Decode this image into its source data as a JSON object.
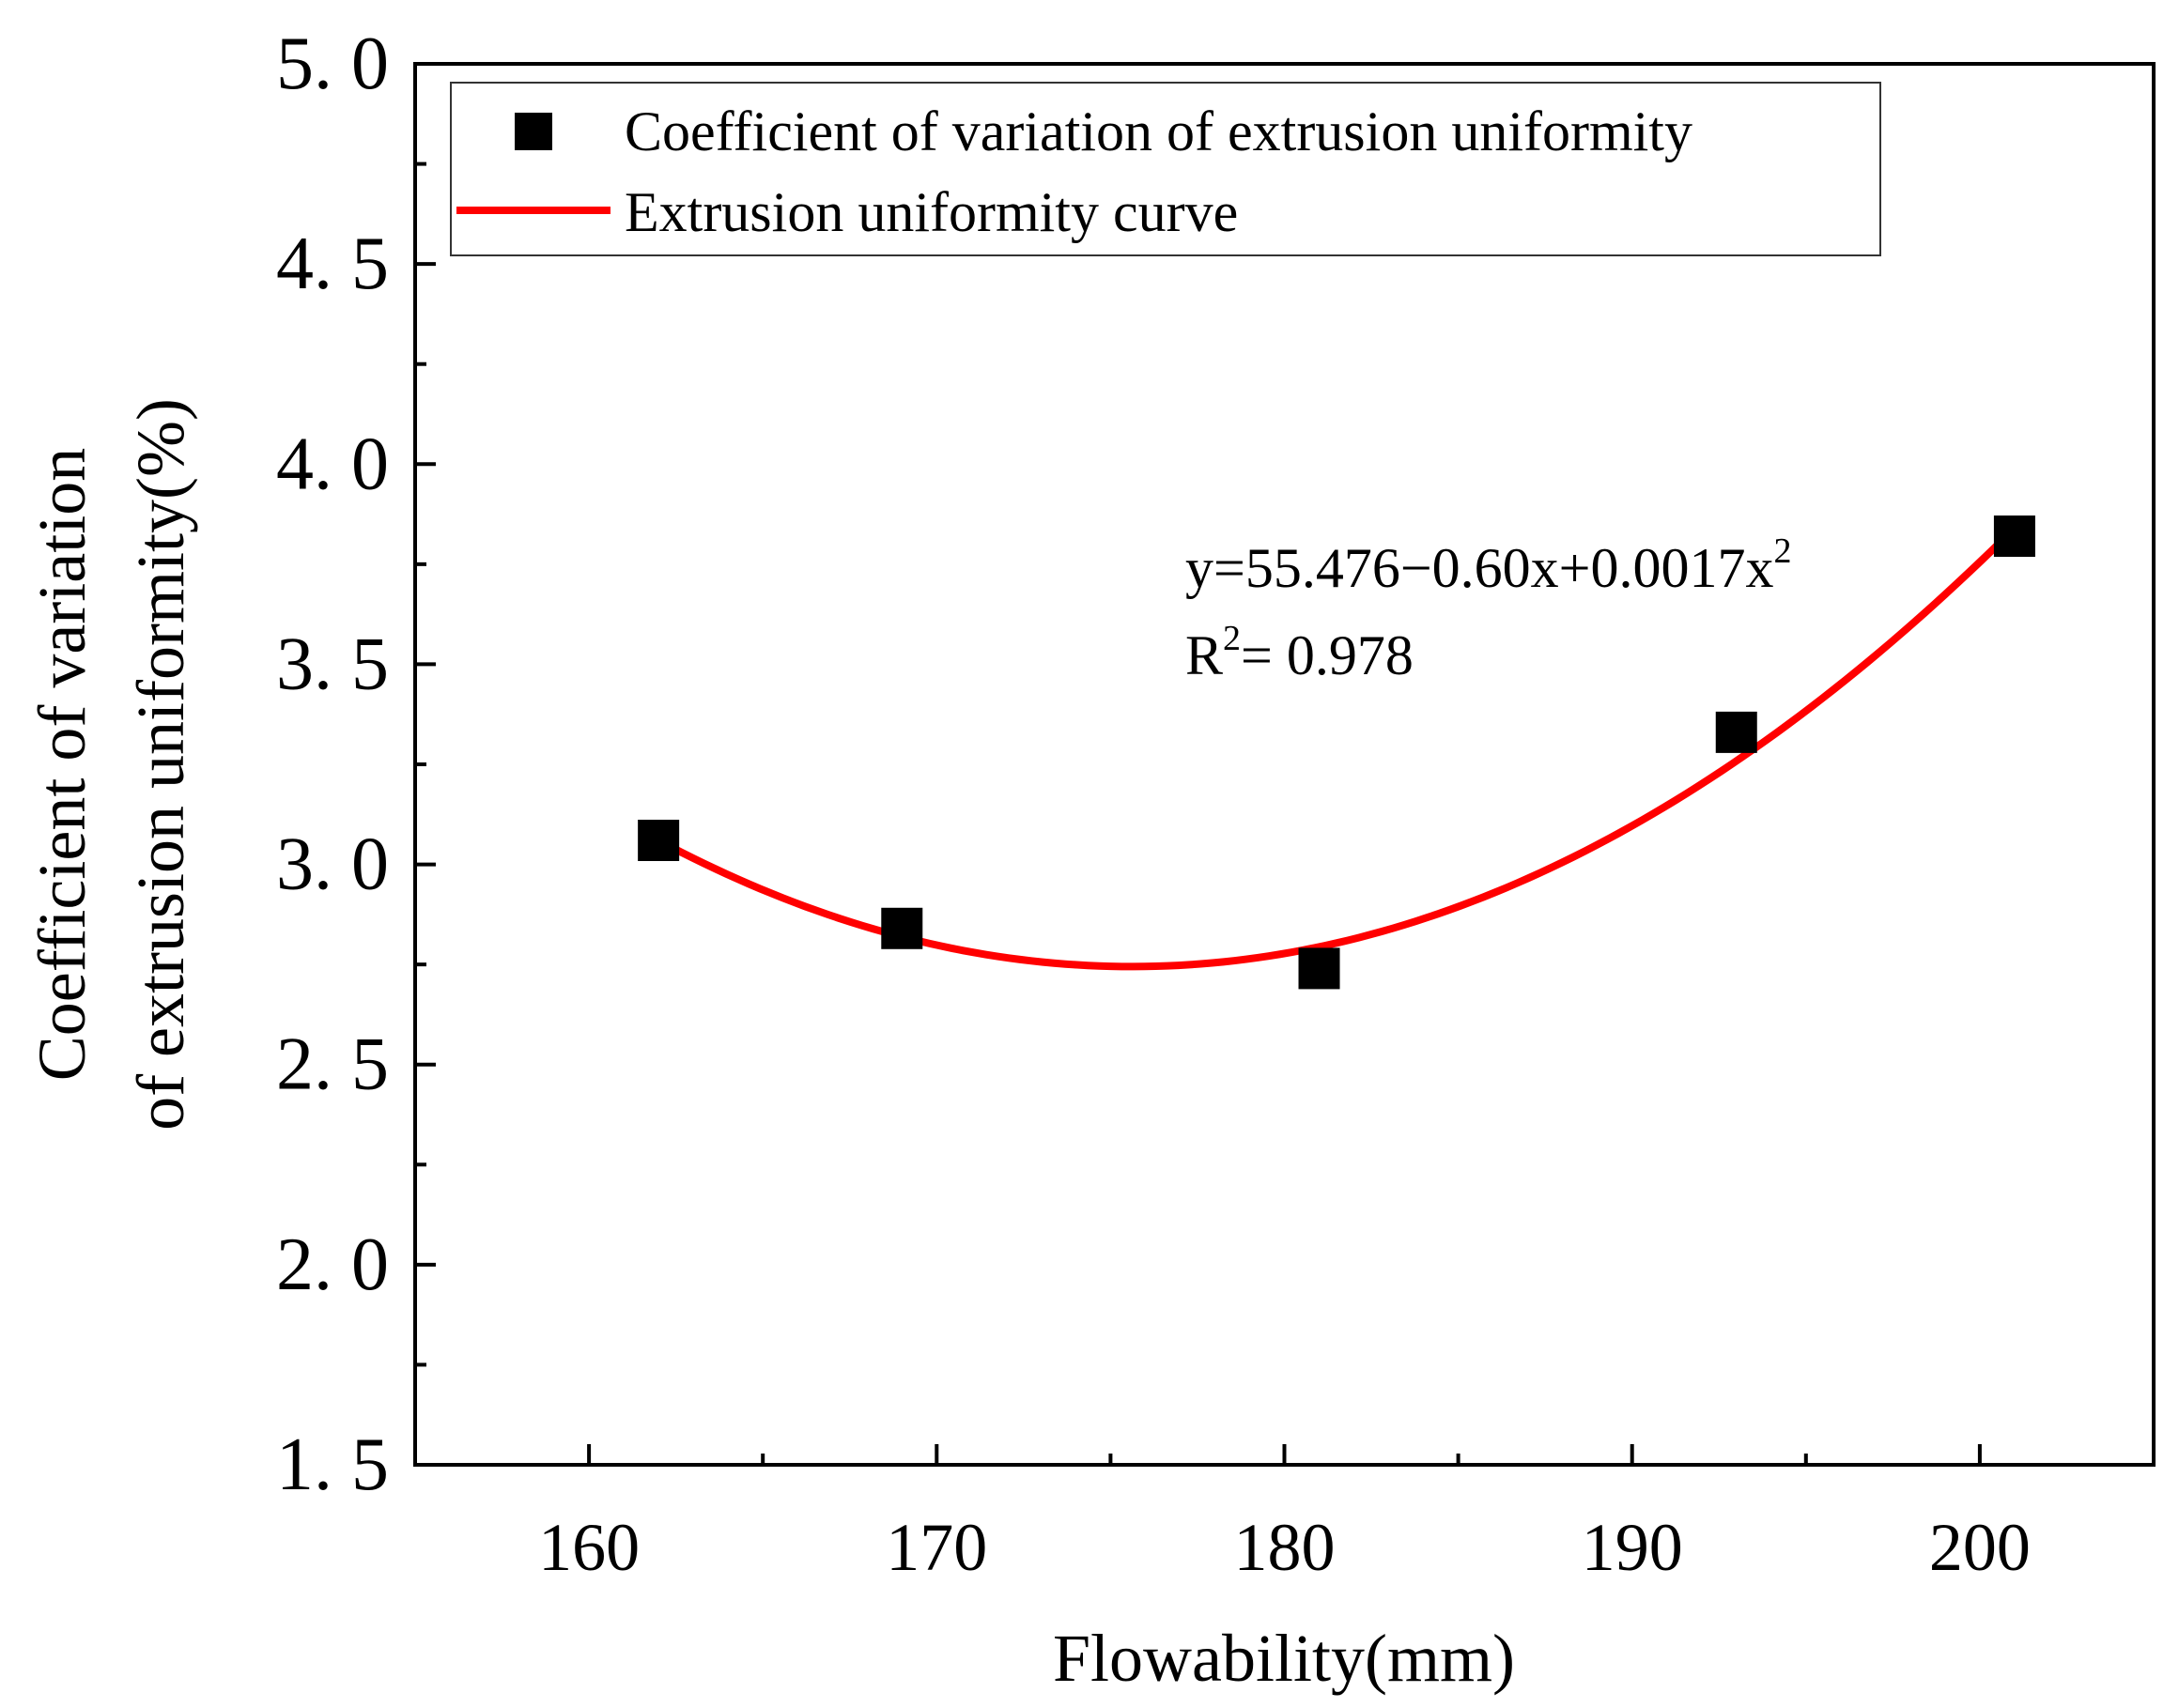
{
  "chart_data": {
    "type": "scatter",
    "title": "",
    "xlabel": "Flowability(mm)",
    "ylabel_line1": "Coefficient of variation",
    "ylabel_line2": "of extrusion uniformity(%)",
    "xlim": [
      155,
      205
    ],
    "ylim": [
      1.5,
      5.0
    ],
    "x_ticks": [
      160,
      170,
      180,
      190,
      200
    ],
    "x_tick_labels": [
      "160",
      "170",
      "180",
      "190",
      "200"
    ],
    "y_ticks": [
      1.5,
      2.0,
      2.5,
      3.0,
      3.5,
      4.0,
      4.5,
      5.0
    ],
    "y_tick_labels": [
      "1. 5",
      "2. 0",
      "2. 5",
      "3. 0",
      "3. 5",
      "4. 0",
      "4. 5",
      "5. 0"
    ],
    "grid": false,
    "legend_position": "top-left",
    "series": [
      {
        "name": "Coefficient of variation of extrusion uniformity",
        "kind": "scatter",
        "marker": "square",
        "color": "#000000",
        "x": [
          162,
          169,
          181,
          193,
          201
        ],
        "y": [
          3.06,
          2.84,
          2.74,
          3.33,
          3.82
        ]
      },
      {
        "name": "Extrusion uniformity curve",
        "kind": "line",
        "color": "#ff0000",
        "x_range": [
          162,
          201
        ],
        "fit_points": [
          [
            162,
            3.06
          ],
          [
            176,
            2.745
          ],
          [
            201,
            3.84
          ]
        ]
      }
    ],
    "annotation": {
      "equation_prefix": "y=55.476−0.60x+0.0017x",
      "equation_sup": "2",
      "r2_prefix": "R",
      "r2_sup": "2",
      "r2_value": "= 0.978"
    }
  }
}
